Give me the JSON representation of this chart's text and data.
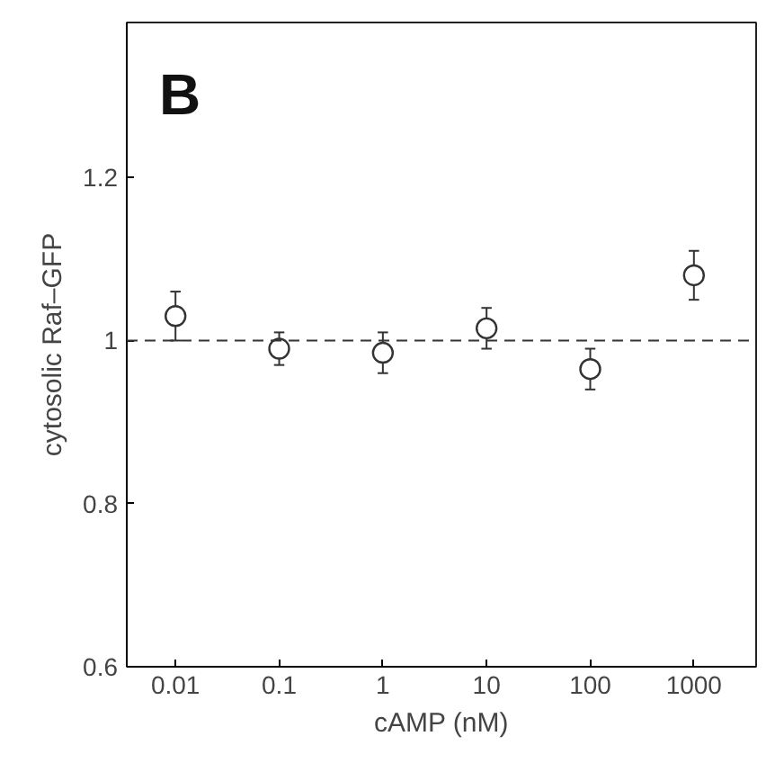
{
  "chart_data": {
    "type": "scatter",
    "xlabel": "cAMP (nM)",
    "ylabel": "cytosolic Raf–GFP",
    "categories": [
      "0.01",
      "0.1",
      "1",
      "10",
      "100",
      "1000"
    ],
    "series": [
      {
        "color": "#333333",
        "values": [
          1.03,
          0.99,
          0.985,
          1.015,
          0.965,
          1.08
        ],
        "errors": [
          0.03,
          0.02,
          0.025,
          0.025,
          0.025,
          0.03
        ]
      }
    ],
    "ylim": [
      0.6,
      1.39
    ],
    "yticks": [
      0.6,
      0.8,
      1,
      1.2
    ],
    "ref_lines": [
      {
        "axis": "y",
        "value": 1,
        "line_style": "dashed",
        "color": "#333333"
      }
    ],
    "annotations": [
      "B"
    ],
    "marker": "circle",
    "grid": false
  }
}
